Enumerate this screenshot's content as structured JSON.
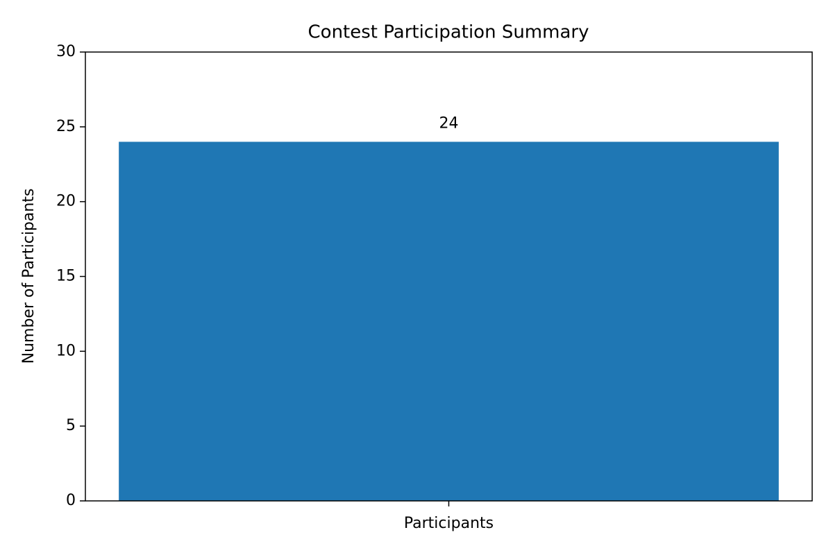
{
  "chart_data": {
    "type": "bar",
    "title": "Contest Participation Summary",
    "ylabel": "Number of Participants",
    "categories": [
      "Participants"
    ],
    "values": [
      24
    ],
    "color": "#1f77b4",
    "ylim": [
      0,
      30
    ],
    "yticks": [
      0,
      5,
      10,
      15,
      20,
      25,
      30
    ],
    "grid": false
  }
}
